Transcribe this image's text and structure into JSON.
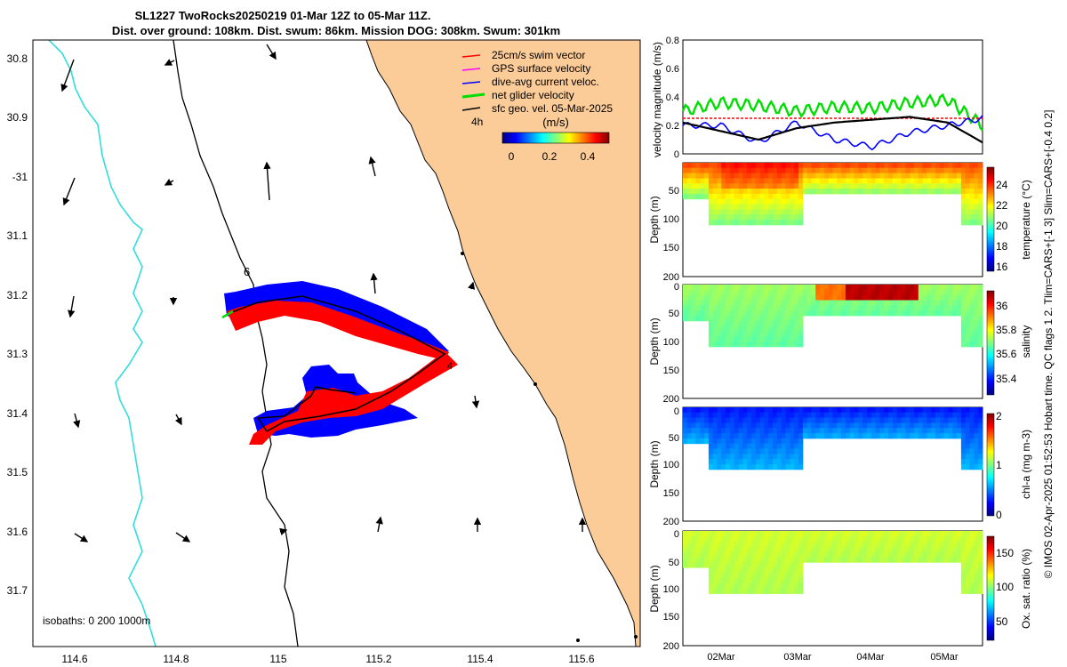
{
  "title": {
    "line1": "SL1227 TwoRocks20250219 01-Mar 12Z to 05-Mar 11Z.",
    "line2": "Dist. over ground: 108km. Dist. swum: 86km. Mission DOG: 308km. Swum: 301km"
  },
  "side_note": "© IMOS 02-Apr-2025 01:52:53 Hobart time. QC flags 1  2. Tlim=CARS+[-1 3] Slim=CARS+[-0.4 0.2]",
  "colors": {
    "land": "#fbcb98",
    "isobath_200": "#000000",
    "isobath_1000": "#33dddd",
    "swim_vector": "#ff0000",
    "gps_velocity": "#ff00ff",
    "dive_current": "#0000ff",
    "net_velocity": "#00dd00",
    "geo_velocity": "#000000"
  },
  "map": {
    "lon_ticks": [
      "114.6",
      "114.8",
      "115",
      "115.2",
      "115.4",
      "115.6"
    ],
    "lat_ticks": [
      "30.8",
      "30.9",
      "-31",
      "31.1",
      "31.2",
      "31.3",
      "31.4",
      "31.5",
      "31.6",
      "31.7"
    ],
    "legend": [
      {
        "label": "25cm/s swim vector",
        "color": "#ff0000"
      },
      {
        "label": "GPS surface velocity",
        "color": "#ff00ff"
      },
      {
        "label": "dive-avg current veloc.",
        "color": "#0000ff"
      },
      {
        "label": "net glider velocity",
        "color": "#00dd00"
      },
      {
        "label": "sfc geo. vel. 05-Mar-2025",
        "color": "#000000"
      }
    ],
    "time_label": "4h",
    "colorbar_unit": "(m/s)",
    "colorbar_ticks": [
      "0",
      "0.2",
      "0.4"
    ],
    "isobath_label": "isobaths: 0   200  1000m",
    "day_markers": [
      "6",
      "4"
    ]
  },
  "chart_data": [
    {
      "type": "line",
      "title": "velocity magnitude",
      "ylabel": "velocity magnitude (m/s)",
      "ylim": [
        0,
        0.8
      ],
      "yticks": [
        "0",
        "0.2",
        "0.4",
        "0.6",
        "0.8"
      ],
      "x_days": [
        1.5,
        2.0,
        2.5,
        3.0,
        3.5,
        4.0,
        4.5,
        5.0,
        5.46
      ],
      "series": [
        {
          "name": "net glider velocity",
          "color": "#00dd00",
          "values": [
            0.3,
            0.36,
            0.34,
            0.3,
            0.33,
            0.32,
            0.36,
            0.38,
            0.2
          ]
        },
        {
          "name": "25cm/s swim vector",
          "color": "#ff0000",
          "values": [
            0.25,
            0.25,
            0.25,
            0.25,
            0.25,
            0.25,
            0.25,
            0.25,
            0.25
          ]
        },
        {
          "name": "dive-avg current veloc.",
          "color": "#0000ff",
          "values": [
            0.2,
            0.2,
            0.08,
            0.22,
            0.1,
            0.05,
            0.15,
            0.2,
            0.25
          ]
        },
        {
          "name": "sfc geo. vel.",
          "color": "#000000",
          "values": [
            0.22,
            0.16,
            0.1,
            0.18,
            0.22,
            0.24,
            0.26,
            0.22,
            0.08
          ]
        }
      ]
    },
    {
      "type": "heatmap",
      "title": "temperature",
      "ylabel": "Depth (m)",
      "clabel": "temperature (°C)",
      "depth_ticks": [
        "50",
        "100",
        "150",
        "200"
      ],
      "cbar_ticks": [
        "16",
        "18",
        "20",
        "22",
        "24"
      ],
      "crange": [
        15.5,
        25.5
      ],
      "surface_value": 23.5,
      "deep_value": 20.5
    },
    {
      "type": "heatmap",
      "title": "salinity",
      "ylabel": "Depth (m)",
      "clabel": "salinity",
      "depth_ticks": [
        "0",
        "50",
        "100",
        "150",
        "200"
      ],
      "cbar_ticks": [
        "35.4",
        "35.6",
        "35.8",
        "36"
      ],
      "crange": [
        35.25,
        36.1
      ],
      "surface_value": 35.7,
      "deep_value": 35.65
    },
    {
      "type": "heatmap",
      "title": "chl-a",
      "ylabel": "Depth (m)",
      "clabel": "chl-a (mg m-3)",
      "depth_ticks": [
        "0",
        "50",
        "100",
        "150",
        "200"
      ],
      "cbar_ticks": [
        "0",
        "1",
        "2"
      ],
      "crange": [
        0,
        2
      ],
      "surface_value": 0.3,
      "deep_value": 0.6
    },
    {
      "type": "heatmap",
      "title": "Ox. sat. ratio",
      "ylabel": "Depth (m)",
      "clabel": "Ox. sat. ratio (%)",
      "depth_ticks": [
        "0",
        "50",
        "100",
        "150",
        "200"
      ],
      "cbar_ticks": [
        "50",
        "100",
        "150"
      ],
      "crange": [
        20,
        175
      ],
      "surface_value": 110,
      "deep_value": 105
    }
  ],
  "time_axis": [
    "02Mar",
    "03Mar",
    "04Mar",
    "05Mar"
  ]
}
